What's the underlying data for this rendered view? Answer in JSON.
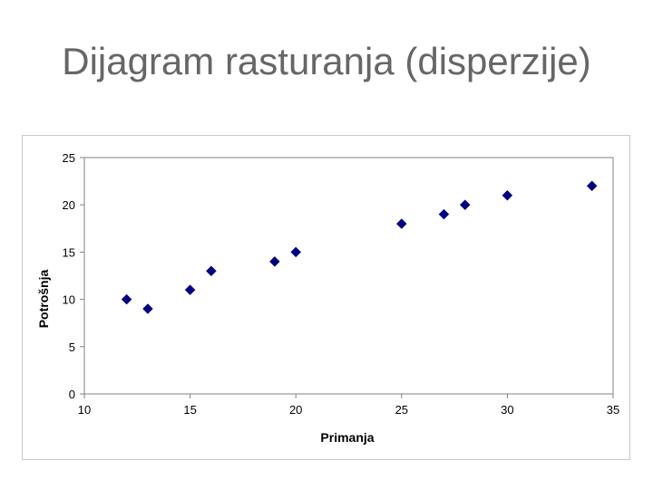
{
  "slide": {
    "title": "Dijagram rasturanja (disperzije)"
  },
  "chart_data": {
    "type": "scatter",
    "title": "",
    "xlabel": "Primanja",
    "ylabel": "Potrošnja",
    "xlim": [
      10,
      35
    ],
    "ylim": [
      0,
      25
    ],
    "xticks": [
      10,
      15,
      20,
      25,
      30,
      35
    ],
    "yticks": [
      0,
      5,
      10,
      15,
      20,
      25
    ],
    "grid": false,
    "legend": "none",
    "marker": "diamond",
    "marker_color": "#000080",
    "points": [
      {
        "x": 12,
        "y": 10
      },
      {
        "x": 13,
        "y": 9
      },
      {
        "x": 15,
        "y": 11
      },
      {
        "x": 16,
        "y": 13
      },
      {
        "x": 19,
        "y": 14
      },
      {
        "x": 20,
        "y": 15
      },
      {
        "x": 25,
        "y": 18
      },
      {
        "x": 27,
        "y": 19
      },
      {
        "x": 28,
        "y": 20
      },
      {
        "x": 30,
        "y": 21
      },
      {
        "x": 34,
        "y": 22
      }
    ]
  }
}
